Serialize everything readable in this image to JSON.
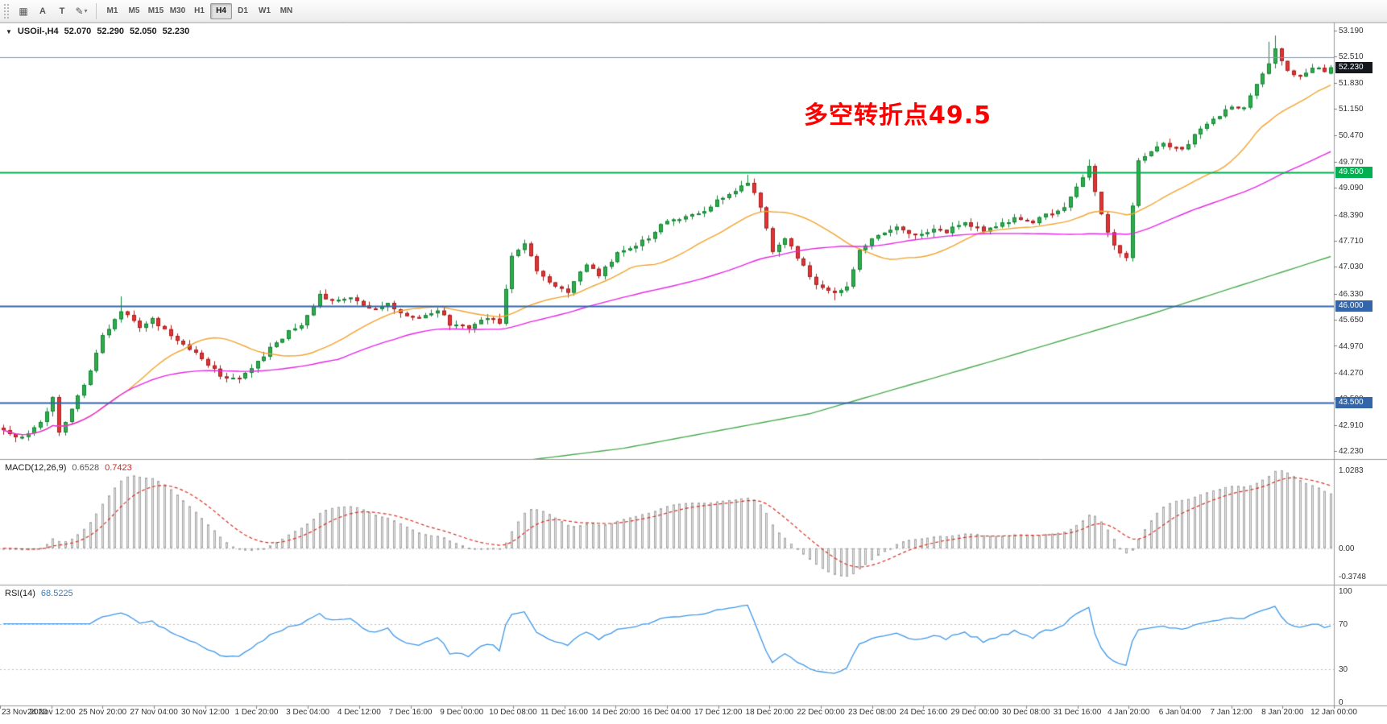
{
  "toolbar": {
    "icon_buttons": [
      {
        "name": "tile-windows-icon",
        "glyph": "▦"
      },
      {
        "name": "text-label-icon",
        "glyph": "A"
      },
      {
        "name": "text-box-icon",
        "glyph": "T"
      },
      {
        "name": "draw-tools-icon",
        "glyph": "✎",
        "caret": "▾"
      }
    ],
    "timeframes": [
      "M1",
      "M5",
      "M15",
      "M30",
      "H1",
      "H4",
      "D1",
      "W1",
      "MN"
    ],
    "active_timeframe": "H4"
  },
  "main_chart": {
    "header": {
      "collapse_icon": "▼",
      "symbol_tf": "USOil-,H4",
      "open": "52.070",
      "high": "52.290",
      "low": "52.050",
      "close": "52.230"
    },
    "annotation": {
      "text": "多空转折点49.5",
      "color": "#fb0000"
    }
  },
  "colors": {
    "up_fill": "#2eae4a",
    "up_border": "#158238",
    "down_fill": "#e23434",
    "down_border": "#a81f1f",
    "ma_fast": "#f2a42e",
    "ma_medium": "#e627e6",
    "ma_slow": "#4cab50",
    "level_green": "#00b050",
    "level_blue": "#3465a8",
    "level_lightblue": "#6e9bd1",
    "badge_dark": "#14181d",
    "macd_hist_fill": "#e3e3e3",
    "macd_hist_border": "#a8a8a8",
    "macd_signal": "#d93025",
    "rsi_line": "#3f97e8",
    "rsi_level": "#bdbdbd",
    "separator": "#9a9a9a",
    "axis_text": "#333333"
  },
  "chart_data": {
    "type": "candlestick",
    "symbol": "USOil-",
    "timeframe": "H4",
    "bars": 215,
    "last_ohlc": {
      "open": 52.07,
      "high": 52.29,
      "low": 52.05,
      "close": 52.23
    },
    "price_axis_ticks": [
      "53.190",
      "52.510",
      "51.830",
      "51.150",
      "50.470",
      "49.770",
      "49.090",
      "48.390",
      "47.710",
      "47.030",
      "46.330",
      "45.650",
      "44.970",
      "44.270",
      "43.590",
      "42.910",
      "42.230"
    ],
    "price_top": 53.19,
    "price_bottom": 42.23,
    "current_price": "52.230",
    "close_path": [
      [
        0,
        42.8
      ],
      [
        3,
        42.55
      ],
      [
        6,
        42.95
      ],
      [
        8,
        43.65
      ],
      [
        9,
        42.75
      ],
      [
        11,
        43.3
      ],
      [
        14,
        44.3
      ],
      [
        16,
        45.2
      ],
      [
        19,
        45.9
      ],
      [
        22,
        45.45
      ],
      [
        24,
        45.65
      ],
      [
        27,
        45.25
      ],
      [
        30,
        44.9
      ],
      [
        32,
        44.65
      ],
      [
        35,
        44.2
      ],
      [
        38,
        44.1
      ],
      [
        40,
        44.35
      ],
      [
        43,
        44.9
      ],
      [
        46,
        45.35
      ],
      [
        48,
        45.5
      ],
      [
        51,
        46.3
      ],
      [
        53,
        46.15
      ],
      [
        56,
        46.25
      ],
      [
        59,
        45.9
      ],
      [
        62,
        46.05
      ],
      [
        64,
        45.85
      ],
      [
        67,
        45.65
      ],
      [
        70,
        45.9
      ],
      [
        72,
        45.55
      ],
      [
        75,
        45.45
      ],
      [
        78,
        45.7
      ],
      [
        80,
        45.6
      ],
      [
        82,
        47.3
      ],
      [
        84,
        47.65
      ],
      [
        86,
        46.9
      ],
      [
        88,
        46.6
      ],
      [
        91,
        46.4
      ],
      [
        94,
        47.1
      ],
      [
        96,
        46.8
      ],
      [
        99,
        47.4
      ],
      [
        102,
        47.6
      ],
      [
        104,
        47.8
      ],
      [
        107,
        48.25
      ],
      [
        110,
        48.35
      ],
      [
        112,
        48.4
      ],
      [
        115,
        48.75
      ],
      [
        118,
        49.05
      ],
      [
        120,
        49.25
      ],
      [
        122,
        48.6
      ],
      [
        124,
        47.4
      ],
      [
        126,
        47.8
      ],
      [
        128,
        47.25
      ],
      [
        131,
        46.6
      ],
      [
        134,
        46.35
      ],
      [
        136,
        46.55
      ],
      [
        138,
        47.45
      ],
      [
        141,
        47.9
      ],
      [
        144,
        48.1
      ],
      [
        147,
        47.85
      ],
      [
        150,
        48.0
      ],
      [
        152,
        47.95
      ],
      [
        155,
        48.2
      ],
      [
        158,
        47.95
      ],
      [
        160,
        48.1
      ],
      [
        163,
        48.3
      ],
      [
        166,
        48.2
      ],
      [
        168,
        48.4
      ],
      [
        171,
        48.55
      ],
      [
        173,
        49.1
      ],
      [
        175,
        49.62
      ],
      [
        177,
        48.4
      ],
      [
        179,
        47.55
      ],
      [
        181,
        47.3
      ],
      [
        182,
        48.6
      ],
      [
        183,
        49.85
      ],
      [
        184,
        49.9
      ],
      [
        187,
        50.25
      ],
      [
        190,
        50.1
      ],
      [
        192,
        50.45
      ],
      [
        195,
        50.85
      ],
      [
        198,
        51.25
      ],
      [
        200,
        51.15
      ],
      [
        202,
        51.75
      ],
      [
        204,
        52.35
      ],
      [
        205,
        52.7
      ],
      [
        207,
        52.1
      ],
      [
        209,
        51.95
      ],
      [
        211,
        52.25
      ],
      [
        213,
        52.1
      ],
      [
        214,
        52.23
      ]
    ],
    "wick_overrides": [
      {
        "bar": 9,
        "low": 42.62
      },
      {
        "bar": 19,
        "high": 46.26
      },
      {
        "bar": 84,
        "high": 47.74
      },
      {
        "bar": 120,
        "high": 49.43
      },
      {
        "bar": 134,
        "low": 46.16
      },
      {
        "bar": 175,
        "high": 49.83
      },
      {
        "bar": 181,
        "low": 47.18
      },
      {
        "bar": 204,
        "high": 52.9
      },
      {
        "bar": 205,
        "high": 53.06
      }
    ],
    "moving_averages": {
      "fast_period": 21,
      "medium_period": 55,
      "slow_path": [
        [
          0,
          40.6
        ],
        [
          60,
          41.5
        ],
        [
          100,
          42.3
        ],
        [
          130,
          43.2
        ],
        [
          160,
          44.6
        ],
        [
          185,
          45.8
        ],
        [
          214,
          47.3
        ]
      ]
    },
    "levels": [
      {
        "price": 52.5,
        "color_key": "level_lightblue",
        "width": 1,
        "badge": null
      },
      {
        "price": 49.5,
        "color_key": "level_green",
        "width": 2,
        "badge": "49.500"
      },
      {
        "price": 46.0,
        "color_key": "level_blue",
        "width": 2,
        "badge": "46.000"
      },
      {
        "price": 43.5,
        "color_key": "level_blue",
        "width": 2,
        "badge": "43.500"
      }
    ],
    "macd": {
      "label": "MACD(12,26,9)",
      "fast": 12,
      "slow": 26,
      "signal": 9,
      "value_main": "0.6528",
      "value_signal": "0.7423",
      "axis_max_label": "1.0283",
      "axis_zero_label": "0.00",
      "axis_min_label": "-0.3748",
      "axis_max": 1.0283,
      "axis_min": -0.3748
    },
    "rsi": {
      "label": "RSI(14)",
      "period": 14,
      "value": "68.5225",
      "levels": [
        70,
        30
      ],
      "axis_ticks": [
        "100",
        "70",
        "30",
        "0"
      ]
    },
    "time_labels": [
      "23 Nov 2020",
      "24 Nov 12:00",
      "25 Nov 20:00",
      "27 Nov 04:00",
      "30 Nov 12:00",
      "1 Dec 20:00",
      "3 Dec 04:00",
      "4 Dec 12:00",
      "7 Dec 16:00",
      "9 Dec 00:00",
      "10 Dec 08:00",
      "11 Dec 16:00",
      "14 Dec 20:00",
      "16 Dec 04:00",
      "17 Dec 12:00",
      "18 Dec 20:00",
      "22 Dec 00:00",
      "23 Dec 08:00",
      "24 Dec 16:00",
      "29 Dec 00:00",
      "30 Dec 08:00",
      "31 Dec 16:00",
      "4 Jan 20:00",
      "6 Jan 04:00",
      "7 Jan 12:00",
      "8 Jan 20:00",
      "12 Jan 00:00"
    ]
  }
}
